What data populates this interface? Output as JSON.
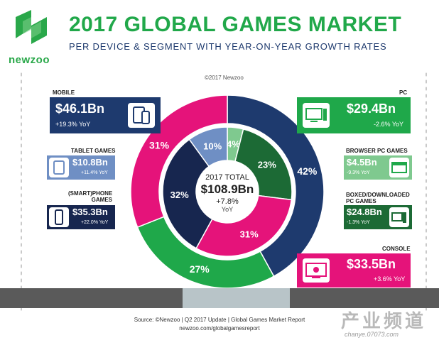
{
  "brand": {
    "logo_text": "newzoo",
    "logo_color": "#2aa84a"
  },
  "header": {
    "title": "2017 GLOBAL GAMES MARKET",
    "subtitle": "PER DEVICE & SEGMENT WITH YEAR-ON-YEAR GROWTH RATES"
  },
  "copyright": "©2017 Newzoo",
  "center": {
    "label": "2017 TOTAL",
    "value": "$108.9Bn",
    "growth": "+7.8%",
    "growth_unit": "YoY"
  },
  "segments": {
    "mobile": {
      "label": "MOBILE",
      "value": "$46.1Bn",
      "growth": "+19.3% YoY",
      "color": "#1e3a6e",
      "icon": "mobile-devices-icon"
    },
    "tablet": {
      "label": "TABLET GAMES",
      "value": "$10.8Bn",
      "growth": "+11.4% YoY",
      "color": "#6f8fc4",
      "icon": "tablet-icon"
    },
    "phone": {
      "label": "(SMART)PHONE GAMES",
      "label_lines": [
        "(SMART)PHONE",
        "GAMES"
      ],
      "value": "$35.3Bn",
      "growth": "+22.0% YoY",
      "color": "#17264f",
      "icon": "smartphone-icon"
    },
    "pc": {
      "label": "PC",
      "value": "$29.4Bn",
      "growth": "-2.6% YoY",
      "color": "#1fa84a",
      "icon": "desktop-pc-icon"
    },
    "browser": {
      "label": "BROWSER PC GAMES",
      "value": "$4.5Bn",
      "growth": "-9.3% YoY",
      "color": "#7fc98f",
      "icon": "browser-window-icon"
    },
    "boxed": {
      "label": "BOXED/DOWNLOADED PC GAMES",
      "label_lines": [
        "BOXED/DOWNLOADED",
        "PC GAMES"
      ],
      "value": "$24.8Bn",
      "growth": "-1.3% YoY",
      "color": "#1c6a35",
      "icon": "pc-tower-icon"
    },
    "console": {
      "label": "CONSOLE",
      "value": "$33.5Bn",
      "growth": "+3.6% YoY",
      "color": "#e5137a",
      "icon": "tv-controller-icon"
    }
  },
  "chart_data": {
    "type": "pie",
    "title": "2017 GLOBAL GAMES MARKET",
    "unit": "$Bn",
    "total": 108.9,
    "outer_ring": [
      {
        "name": "MOBILE",
        "value": 46.1,
        "percent": 42,
        "color": "#1e3a6e"
      },
      {
        "name": "PC",
        "value": 29.4,
        "percent": 27,
        "color": "#1fa84a"
      },
      {
        "name": "CONSOLE",
        "value": 33.5,
        "percent": 31,
        "color": "#e5137a"
      }
    ],
    "inner_ring": [
      {
        "name": "BROWSER PC GAMES",
        "value": 4.5,
        "percent": 4,
        "color": "#7fc98f"
      },
      {
        "name": "BOXED/DOWNLOADED PC GAMES",
        "value": 24.8,
        "percent": 23,
        "color": "#1c6a35"
      },
      {
        "name": "CONSOLE",
        "value": 33.5,
        "percent": 31,
        "color": "#e5137a"
      },
      {
        "name": "(SMART)PHONE GAMES",
        "value": 35.3,
        "percent": 32,
        "color": "#17264f"
      },
      {
        "name": "TABLET GAMES",
        "value": 10.8,
        "percent": 10,
        "color": "#6f8fc4"
      }
    ]
  },
  "footer": {
    "source": "Source: ©Newzoo | Q2 2017 Update | Global Games Market Report",
    "url": "newzoo.com/globalgamesreport"
  },
  "watermark": {
    "text": "产业频道",
    "url": "chanye.07073.com"
  }
}
